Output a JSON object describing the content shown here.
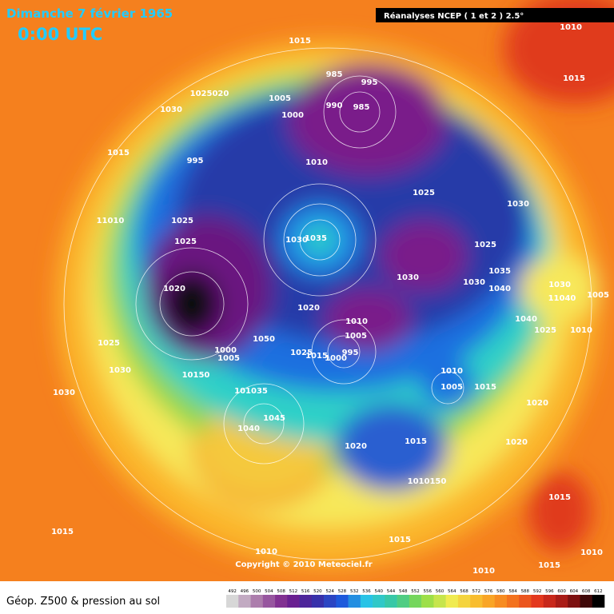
{
  "header": {
    "date": "Dimanche 7 février 1965",
    "time": "0:00 UTC",
    "source": "Réanalyses NCEP ( 1 et 2 ) 2.5°"
  },
  "copyright": "Copyright © 2010 Meteociel.fr",
  "isobar_labels": [
    "1010",
    "1015",
    "1015",
    "985",
    "995",
    "1025020",
    "1005",
    "990",
    "985",
    "1030",
    "1000",
    "1015",
    "995",
    "1010",
    "1025",
    "1030",
    "11010",
    "1025",
    "1025",
    "1030",
    "1035",
    "1025",
    "1035",
    "1030",
    "1030",
    "1040",
    "1030",
    "1020",
    "11040",
    "1005",
    "1020",
    "1010",
    "1040",
    "1005",
    "1025",
    "1010",
    "1050",
    "1025",
    "1000",
    "1025",
    "1015",
    "995",
    "1000",
    "1005",
    "1010",
    "1030",
    "10150",
    "1005",
    "1015",
    "1030",
    "101035",
    "1020",
    "1045",
    "1040",
    "1020",
    "1015",
    "1020",
    "1010150",
    "1015",
    "1015",
    "1015",
    "1010",
    "1010",
    "1010",
    "1015"
  ],
  "legend": {
    "title": "Géop. Z500 & pression au sol",
    "values": [
      492,
      496,
      500,
      504,
      508,
      512,
      516,
      520,
      524,
      528,
      532,
      536,
      540,
      544,
      548,
      552,
      556,
      560,
      564,
      568,
      572,
      576,
      580,
      584,
      588,
      592,
      596,
      600,
      604,
      608,
      612
    ]
  }
}
